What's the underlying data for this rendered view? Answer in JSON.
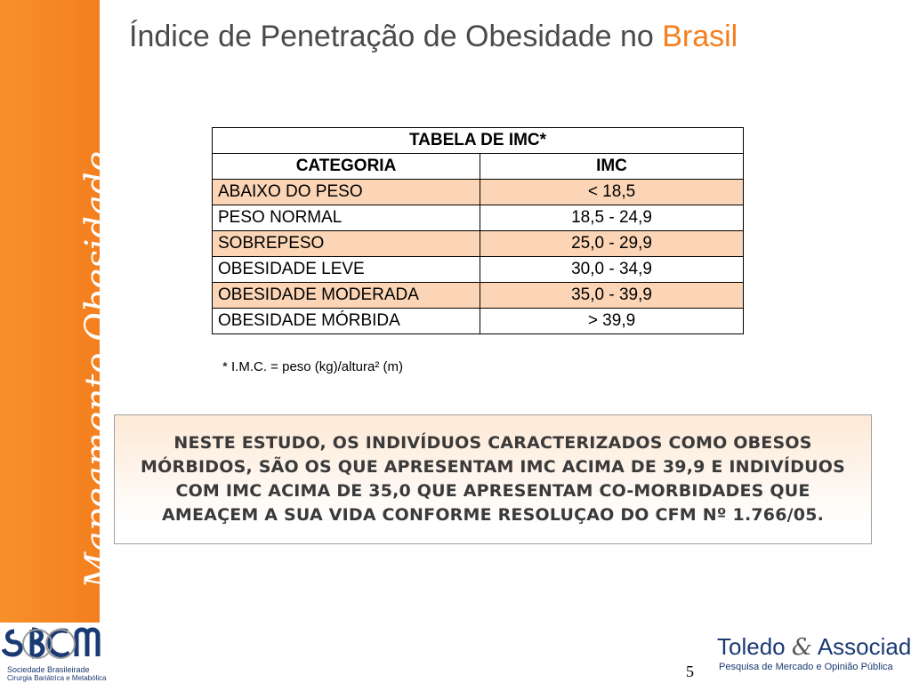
{
  "sidebar": {
    "label": "Mapeamento Obesidade"
  },
  "title": {
    "text": "Índice de Penetração de Obesidade no ",
    "accent": "Brasil"
  },
  "table": {
    "caption": "TABELA DE IMC*",
    "headers": [
      "CATEGORIA",
      "IMC"
    ],
    "rows": [
      {
        "categoria": "ABAIXO DO PESO",
        "imc": "< 18,5"
      },
      {
        "categoria": "PESO NORMAL",
        "imc": "18,5 - 24,9"
      },
      {
        "categoria": "SOBREPESO",
        "imc": "25,0 - 29,9"
      },
      {
        "categoria": "OBESIDADE LEVE",
        "imc": "30,0 - 34,9"
      },
      {
        "categoria": "OBESIDADE MODERADA",
        "imc": "35,0 - 39,9"
      },
      {
        "categoria": "OBESIDADE MÓRBIDA",
        "imc": "> 39,9"
      }
    ]
  },
  "footnote": "*  I.M.C. = peso (kg)/altura² (m)",
  "note": "NESTE ESTUDO, OS INDIVÍDUOS CARACTERIZADOS COMO OBESOS MÓRBIDOS, SÃO OS QUE APRESENTAM IMC ACIMA DE 39,9 E INDIVÍDUOS COM IMC ACIMA DE 35,0 QUE APRESENTAM CO-MORBIDADES QUE AMEAÇEM A SUA VIDA CONFORME RESOLUÇAO DO CFM Nº 1.766/05.",
  "logos": {
    "left_line1": "Sociedade Brasileirade",
    "left_line2": "Cirurgia Bariátrica e Metabólica",
    "right_name1": "Toledo",
    "right_amp": "&",
    "right_name2": "Associados",
    "right_sub": "Pesquisa de Mercado e  Opinião Pública"
  },
  "page_number": "5",
  "colors": {
    "sidebar": "#f47f1f",
    "shade": "#fbd5b5",
    "accent": "#f47f1f",
    "brand": "#1b3a73"
  }
}
